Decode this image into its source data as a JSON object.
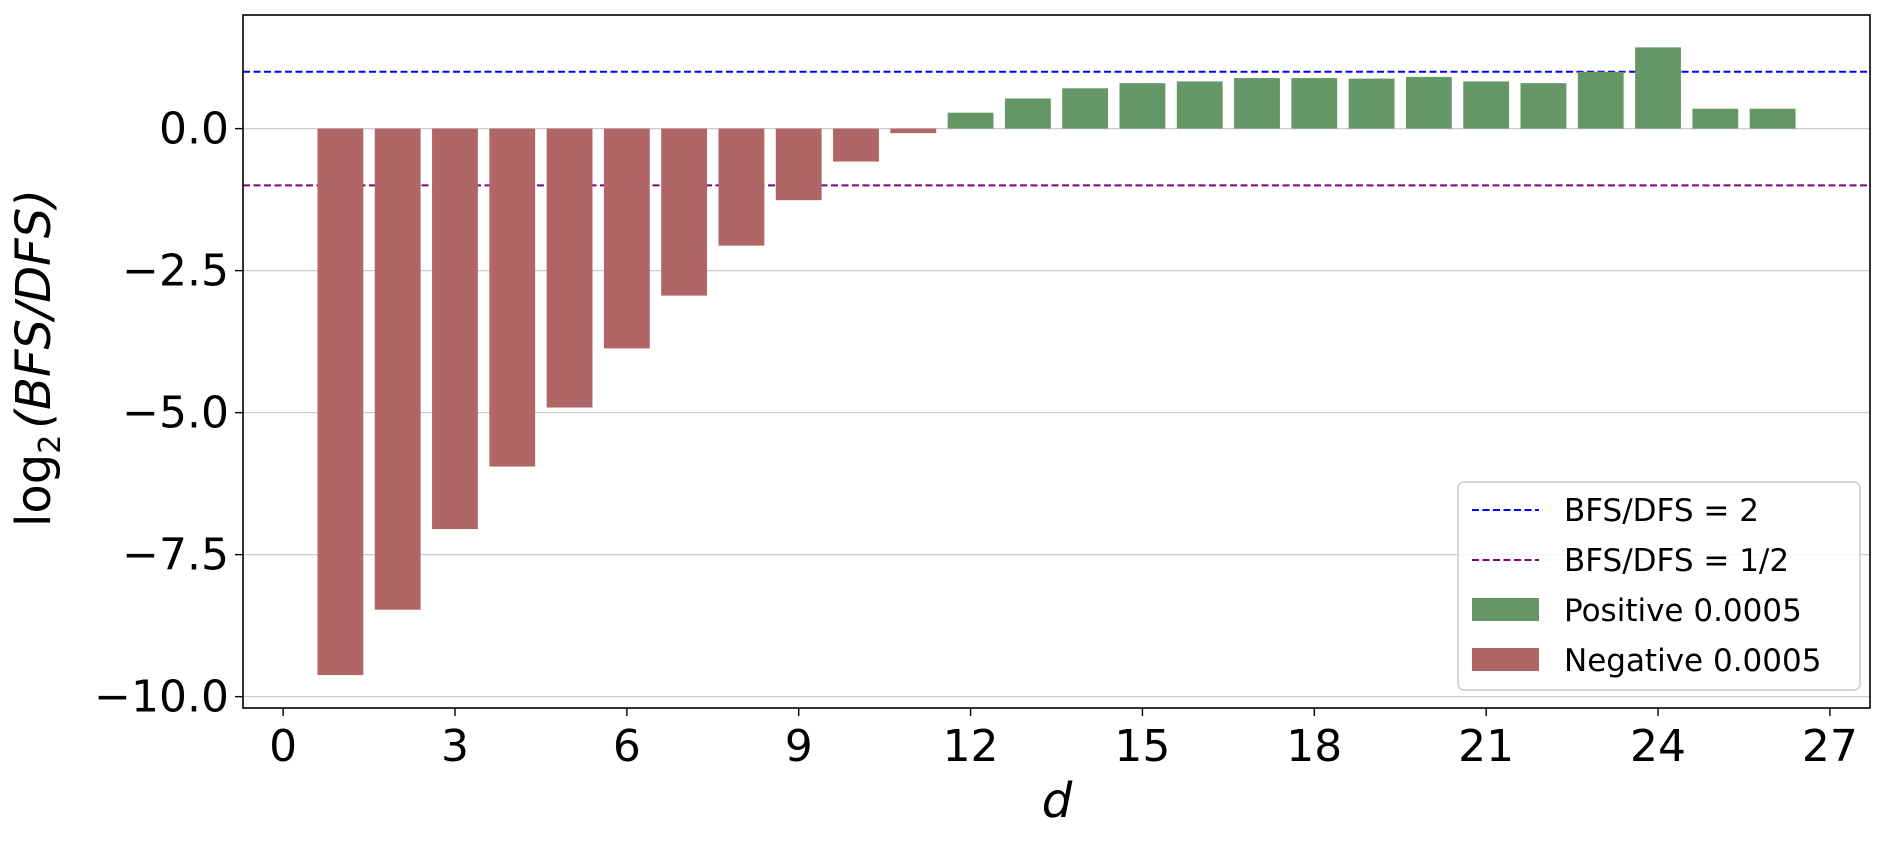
{
  "chart_data": {
    "type": "bar",
    "xlabel": "d",
    "ylabel": {
      "func": "log",
      "sub": "2",
      "body": "(BFS/DFS)"
    },
    "xlim": [
      -0.7,
      27.7
    ],
    "ylim": [
      -10.2,
      2.0
    ],
    "xticks": [
      0,
      3,
      6,
      9,
      12,
      15,
      18,
      21,
      24,
      27
    ],
    "yticks": [
      0.0,
      -2.5,
      -5.0,
      -7.5,
      -10.0
    ],
    "ytick_labels": [
      "0.0",
      "−2.5",
      "−5.0",
      "−7.5",
      "−10.0"
    ],
    "grid": "horizontal",
    "legend_position": "lower-right",
    "reference_lines": [
      {
        "label": "BFS/DFS = 2",
        "y": 1.0,
        "color": "#0000ff",
        "style": "dashed"
      },
      {
        "label": "BFS/DFS = 1/2",
        "y": -1.0,
        "color": "#800080",
        "style": "dashed"
      }
    ],
    "series": [
      {
        "name": "Positive 0.0005",
        "color": "#659665",
        "x": [
          12,
          13,
          14,
          15,
          16,
          17,
          18,
          19,
          20,
          21,
          22,
          23,
          24,
          25,
          26
        ],
        "values": [
          0.28,
          0.53,
          0.71,
          0.8,
          0.83,
          0.89,
          0.89,
          0.88,
          0.91,
          0.83,
          0.8,
          1.0,
          1.43,
          0.35,
          0.35
        ]
      },
      {
        "name": "Negative 0.0005",
        "color": "#b06666",
        "x": [
          1,
          2,
          3,
          4,
          5,
          6,
          7,
          8,
          9,
          10,
          11
        ],
        "values": [
          -9.62,
          -8.47,
          -7.05,
          -5.95,
          -4.91,
          -3.87,
          -2.94,
          -2.06,
          -1.26,
          -0.58,
          -0.08
        ]
      }
    ]
  }
}
